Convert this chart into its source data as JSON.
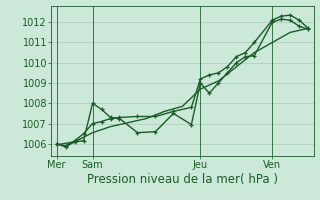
{
  "background_color": "#cce8d8",
  "plot_bg_color": "#cce8d8",
  "line_color": "#1a5c28",
  "grid_color": "#aac8b8",
  "ylim": [
    1005.4,
    1012.8
  ],
  "ylabel_ticks": [
    1006,
    1007,
    1008,
    1009,
    1010,
    1011,
    1012
  ],
  "xlabel": "Pression niveau de la mer( hPa )",
  "xlabel_fontsize": 8.5,
  "tick_fontsize": 7,
  "day_labels": [
    "Mer",
    "Sam",
    "Jeu",
    "Ven"
  ],
  "day_positions": [
    0,
    2,
    8,
    12
  ],
  "xlim": [
    -0.3,
    14.3
  ],
  "line1_x": [
    0,
    0.5,
    1.0,
    1.5,
    2.0,
    2.5,
    3.0,
    3.5,
    4.5,
    5.5,
    6.5,
    7.5,
    8.0,
    8.5,
    9.0,
    9.5,
    10.0,
    10.5,
    11.0,
    12.0,
    12.5,
    13.0,
    13.5,
    14.0
  ],
  "line1_y": [
    1006.0,
    1005.85,
    1006.1,
    1006.15,
    1008.0,
    1007.7,
    1007.3,
    1007.25,
    1006.55,
    1006.6,
    1007.5,
    1006.95,
    1009.0,
    1008.5,
    1009.0,
    1009.5,
    1010.0,
    1010.3,
    1010.35,
    1012.0,
    1012.15,
    1012.1,
    1011.8,
    1011.65
  ],
  "line2_x": [
    0,
    0.5,
    1.0,
    1.5,
    2.0,
    2.5,
    3.0,
    3.5,
    4.5,
    5.5,
    6.5,
    7.5,
    8.0,
    8.5,
    9.0,
    9.5,
    10.0,
    10.5,
    11.0,
    12.0,
    12.5,
    13.0,
    13.5,
    14.0
  ],
  "line2_y": [
    1006.0,
    1005.9,
    1006.15,
    1006.5,
    1007.0,
    1007.1,
    1007.25,
    1007.3,
    1007.35,
    1007.35,
    1007.6,
    1007.8,
    1009.2,
    1009.4,
    1009.5,
    1009.8,
    1010.3,
    1010.5,
    1011.0,
    1012.1,
    1012.3,
    1012.35,
    1012.1,
    1011.7
  ],
  "line3_x": [
    0,
    1.0,
    2.0,
    3.0,
    4.0,
    5.0,
    6.0,
    7.0,
    8.0,
    9.0,
    10.0,
    11.0,
    12.0,
    13.0,
    14.0
  ],
  "line3_y": [
    1005.95,
    1006.1,
    1006.55,
    1006.85,
    1007.05,
    1007.25,
    1007.6,
    1007.85,
    1008.7,
    1009.1,
    1009.8,
    1010.5,
    1011.0,
    1011.5,
    1011.7
  ],
  "marker": "+",
  "linewidth": 1.0,
  "markersize": 3.5
}
